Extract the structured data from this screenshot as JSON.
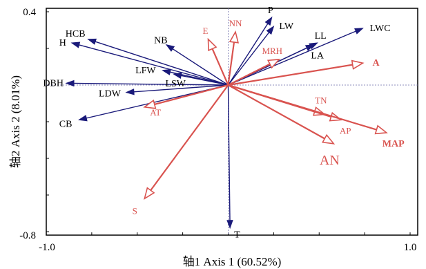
{
  "chart_data": {
    "type": "scatter",
    "xlabel": "轴1 Axis 1 (60.52%)",
    "ylabel": "轴2 Axis 2 (8.01%)",
    "xlim": [
      -1.0,
      1.0
    ],
    "ylim": [
      -0.8,
      0.4
    ],
    "x_ticks": [
      "-1.0",
      "1.0"
    ],
    "y_ticks": [
      "0.4",
      "-0.8"
    ],
    "grid": false,
    "colors": {
      "trait": "#1a1a7a",
      "env": "#d9534f"
    },
    "series": [
      {
        "group": "trait",
        "vectors": [
          {
            "label": "HCB",
            "x": -0.77,
            "y": 0.25
          },
          {
            "label": "H",
            "x": -0.86,
            "y": 0.23
          },
          {
            "label": "NB",
            "x": -0.34,
            "y": 0.22
          },
          {
            "label": "LFW",
            "x": -0.36,
            "y": 0.08
          },
          {
            "label": "LSW",
            "x": -0.3,
            "y": 0.06
          },
          {
            "label": "DBH",
            "x": -0.89,
            "y": 0.01
          },
          {
            "label": "LDW",
            "x": -0.56,
            "y": -0.04
          },
          {
            "label": "CB",
            "x": -0.82,
            "y": -0.19
          },
          {
            "label": "P",
            "x": 0.24,
            "y": 0.37
          },
          {
            "label": "LW",
            "x": 0.25,
            "y": 0.32
          },
          {
            "label": "LL",
            "x": 0.49,
            "y": 0.23
          },
          {
            "label": "LA",
            "x": 0.47,
            "y": 0.22
          },
          {
            "label": "LWC",
            "x": 0.74,
            "y": 0.31
          },
          {
            "label": "T",
            "x": 0.01,
            "y": -0.78
          }
        ]
      },
      {
        "group": "env",
        "vectors": [
          {
            "label": "E",
            "x": -0.11,
            "y": 0.25
          },
          {
            "label": "NN",
            "x": 0.04,
            "y": 0.29
          },
          {
            "label": "MRH",
            "x": 0.28,
            "y": 0.14
          },
          {
            "label": "A",
            "x": 0.74,
            "y": 0.12
          },
          {
            "label": "AT",
            "x": -0.46,
            "y": -0.12
          },
          {
            "label": "TN",
            "x": 0.53,
            "y": -0.16
          },
          {
            "label": "AP",
            "x": 0.62,
            "y": -0.19
          },
          {
            "label": "MAP",
            "x": 0.87,
            "y": -0.26
          },
          {
            "label": "AN",
            "x": 0.58,
            "y": -0.32
          },
          {
            "label": "S",
            "x": -0.46,
            "y": -0.62
          }
        ]
      }
    ]
  }
}
